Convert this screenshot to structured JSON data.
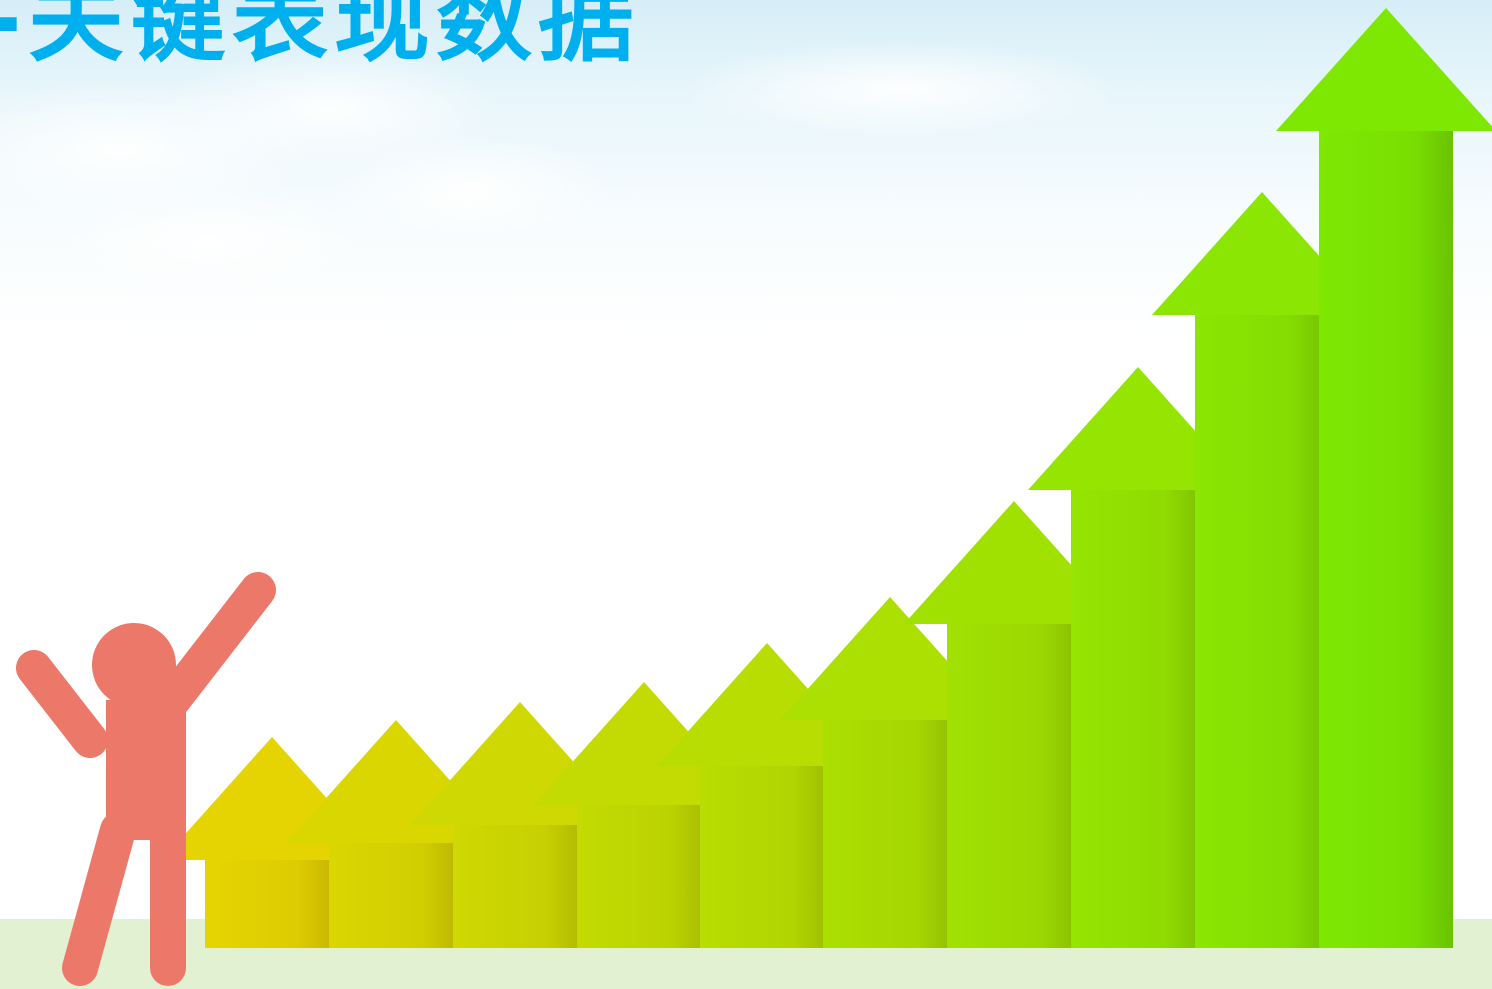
{
  "slide": {
    "title": "-关键表现数据"
  },
  "colors": {
    "title": "#00b0ee",
    "ground": "#e3f1d3",
    "figure": "#ec7869",
    "arrow_start": "#e6d402",
    "arrow_end": "#7ee802"
  },
  "illustration": {
    "arrow_icon": "up-arrow-icon",
    "arrow_count": 10,
    "figure_icon": "cheering-person-icon"
  }
}
